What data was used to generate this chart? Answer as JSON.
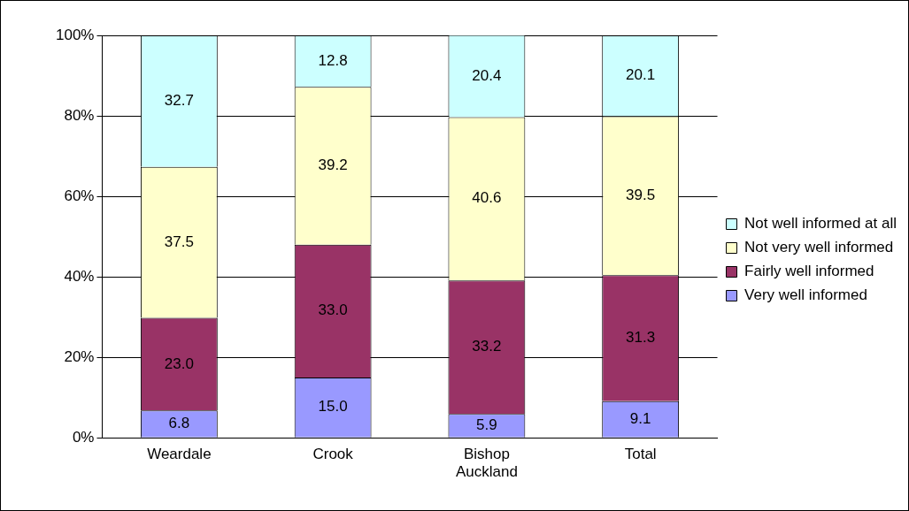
{
  "chart_data": {
    "type": "bar",
    "stacked": true,
    "categories": [
      "Weardale",
      "Crook",
      "Bishop Auckland",
      "Total"
    ],
    "series": [
      {
        "name": "Very well informed",
        "color": "#9999ff",
        "values": [
          6.8,
          15.0,
          5.9,
          9.1
        ],
        "value_labels": [
          "6.8",
          "15.0",
          "5.9",
          "9.1"
        ]
      },
      {
        "name": "Fairly well informed",
        "color": "#993366",
        "values": [
          23.0,
          33.0,
          33.2,
          31.3
        ],
        "value_labels": [
          "23.0",
          "33.0",
          "33.2",
          "31.3"
        ]
      },
      {
        "name": "Not very well informed",
        "color": "#ffffcc",
        "values": [
          37.5,
          39.2,
          40.6,
          39.5
        ],
        "value_labels": [
          "37.5",
          "39.2",
          "40.6",
          "39.5"
        ]
      },
      {
        "name": "Not well informed at all",
        "color": "#ccffff",
        "values": [
          32.7,
          12.8,
          20.4,
          20.1
        ],
        "value_labels": [
          "32.7",
          "12.8",
          "20.4",
          "20.1"
        ]
      }
    ],
    "ylim": [
      0,
      100
    ],
    "yticks": [
      {
        "value": 0,
        "label": "0%"
      },
      {
        "value": 20,
        "label": "20%"
      },
      {
        "value": 40,
        "label": "40%"
      },
      {
        "value": 60,
        "label": "60%"
      },
      {
        "value": 80,
        "label": "80%"
      },
      {
        "value": 100,
        "label": "100%"
      }
    ],
    "grid": "y",
    "legend": "right"
  }
}
